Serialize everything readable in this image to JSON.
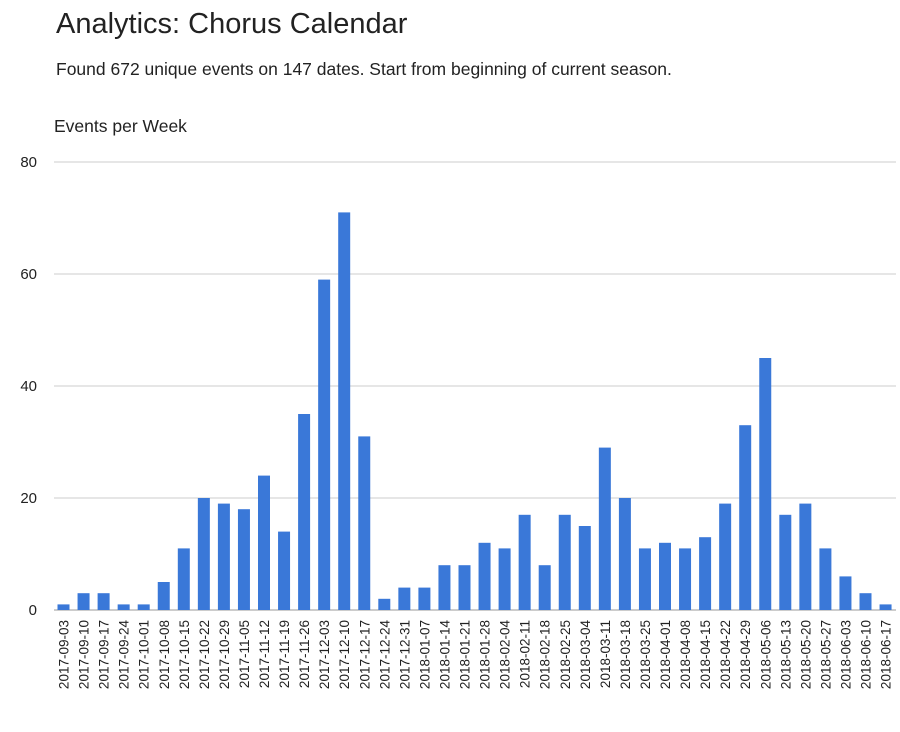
{
  "header": {
    "title": "Analytics: Chorus Calendar",
    "subtitle": "Found 672 unique events on 147 dates. Start from beginning of current season."
  },
  "chart_data": {
    "type": "bar",
    "title": "Events per Week",
    "xlabel": "",
    "ylabel": "",
    "ylim": [
      0,
      80
    ],
    "yticks": [
      0,
      20,
      40,
      60,
      80
    ],
    "grid": true,
    "legend": "none",
    "bar_color": "#3a78d8",
    "grid_color": "#cccccc",
    "categories": [
      "2017-09-03",
      "2017-09-10",
      "2017-09-17",
      "2017-09-24",
      "2017-10-01",
      "2017-10-08",
      "2017-10-15",
      "2017-10-22",
      "2017-10-29",
      "2017-11-05",
      "2017-11-12",
      "2017-11-19",
      "2017-11-26",
      "2017-12-03",
      "2017-12-10",
      "2017-12-17",
      "2017-12-24",
      "2017-12-31",
      "2018-01-07",
      "2018-01-14",
      "2018-01-21",
      "2018-01-28",
      "2018-02-04",
      "2018-02-11",
      "2018-02-18",
      "2018-02-25",
      "2018-03-04",
      "2018-03-11",
      "2018-03-18",
      "2018-03-25",
      "2018-04-01",
      "2018-04-08",
      "2018-04-15",
      "2018-04-22",
      "2018-04-29",
      "2018-05-06",
      "2018-05-13",
      "2018-05-20",
      "2018-05-27",
      "2018-06-03",
      "2018-06-10",
      "2018-06-17"
    ],
    "values": [
      1,
      3,
      3,
      1,
      1,
      5,
      11,
      20,
      19,
      18,
      24,
      14,
      35,
      59,
      71,
      31,
      2,
      4,
      4,
      8,
      8,
      12,
      11,
      17,
      8,
      17,
      15,
      29,
      20,
      11,
      12,
      11,
      13,
      19,
      33,
      45,
      17,
      19,
      11,
      6,
      3,
      1
    ]
  }
}
